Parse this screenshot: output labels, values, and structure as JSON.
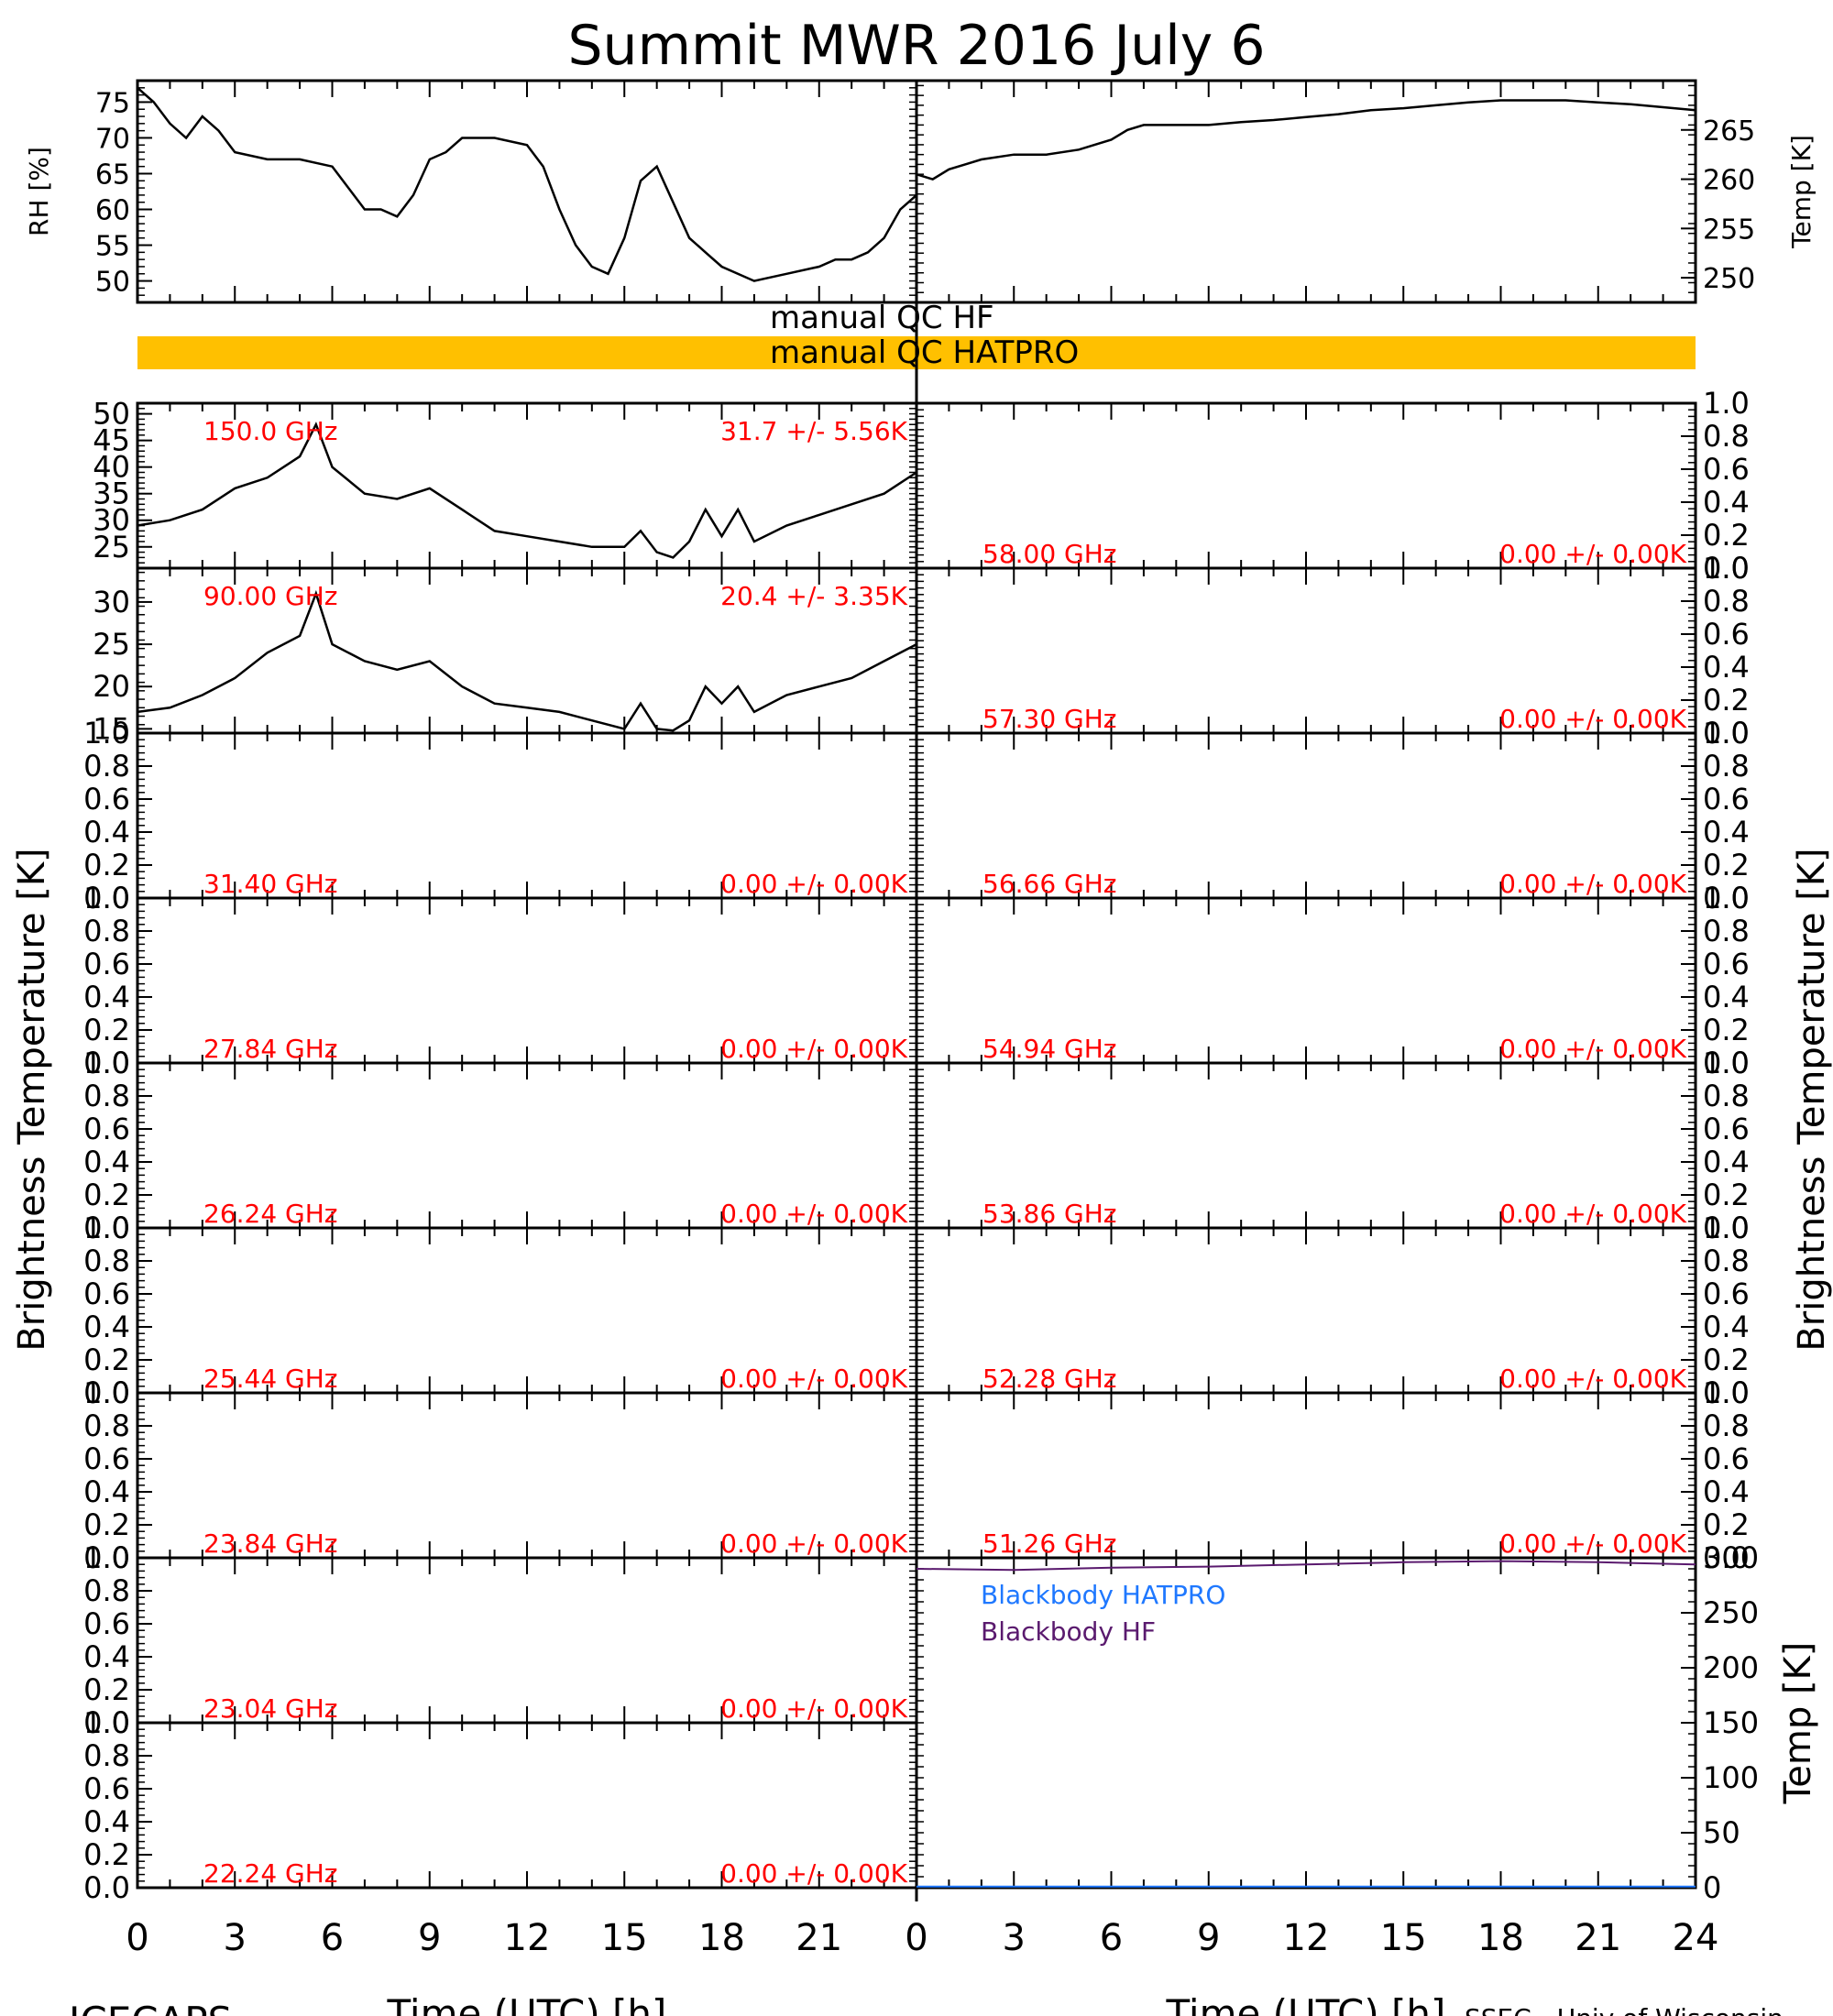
{
  "title": "Summit MWR 2016 July  6",
  "footer": {
    "left": "ICECAPS",
    "right": "SSEC - Univ of Wisconsin"
  },
  "xaxis": {
    "label": "Time (UTC) [h]",
    "range": [
      0,
      24
    ],
    "tick_labels": [
      "0",
      "3",
      "6",
      "9",
      "12",
      "15",
      "18",
      "21",
      "24"
    ]
  },
  "ylabels": {
    "bt_left": "Brightness Temperature [K]",
    "bt_right": "Brightness Temperature [K]"
  },
  "qc": {
    "hf_label": "manual QC HF",
    "hatpro_label": "manual QC HATPRO",
    "hatpro_color": "#ffc000"
  },
  "colors": {
    "trace": "#000000",
    "annotation": "#ff0000",
    "bb_hatpro": "#1f78ff",
    "bb_hf": "#5a1a6e"
  },
  "chart_data": [
    {
      "id": "rh",
      "type": "line",
      "ylabel": "RH [%]",
      "ylim": [
        47,
        78
      ],
      "yticks": [
        50,
        55,
        60,
        65,
        70,
        75
      ],
      "x": [
        0,
        0.5,
        1,
        1.5,
        2,
        2.5,
        3,
        4,
        5,
        6,
        6.5,
        7,
        7.5,
        8,
        8.5,
        9,
        9.5,
        10,
        11,
        12,
        12.5,
        13,
        13.5,
        14,
        14.5,
        15,
        15.5,
        16,
        16.5,
        17,
        17.5,
        18,
        19,
        20,
        21,
        21.5,
        22,
        22.5,
        23,
        23.5,
        24
      ],
      "values": [
        77,
        75,
        72,
        70,
        73,
        71,
        68,
        67,
        67,
        66,
        63,
        60,
        60,
        59,
        62,
        67,
        68,
        70,
        70,
        69,
        66,
        60,
        55,
        52,
        51,
        56,
        64,
        66,
        61,
        56,
        54,
        52,
        50,
        51,
        52,
        53,
        53,
        54,
        56,
        60,
        62
      ]
    },
    {
      "id": "temp",
      "type": "line",
      "ylabel": "Temp [K]",
      "ylim": [
        247.5,
        270
      ],
      "yticks": [
        250,
        255,
        260,
        265
      ],
      "x": [
        0,
        0.5,
        1,
        1.5,
        2,
        3,
        4,
        5,
        6,
        6.5,
        7,
        8,
        9,
        10,
        11,
        12,
        13,
        14,
        15,
        16,
        17,
        18,
        19,
        20,
        21,
        22,
        23,
        24
      ],
      "values": [
        260.5,
        260,
        261,
        261.5,
        262,
        262.5,
        262.5,
        263,
        264,
        265,
        265.5,
        265.5,
        265.5,
        265.8,
        266,
        266.3,
        266.6,
        267,
        267.2,
        267.5,
        267.8,
        268,
        268,
        268,
        267.8,
        267.6,
        267.3,
        267
      ]
    },
    {
      "id": "ch-150",
      "type": "line",
      "label": "150.0 GHz",
      "stat": "31.7 +/-  5.56K",
      "ylim": [
        21,
        52
      ],
      "yticks": [
        25,
        30,
        35,
        40,
        45,
        50
      ],
      "x": [
        0,
        1,
        2,
        3,
        4,
        5,
        5.5,
        6,
        7,
        8,
        9,
        10,
        11,
        12,
        13,
        14,
        15,
        15.5,
        16,
        16.5,
        17,
        17.5,
        18,
        18.5,
        19,
        20,
        21,
        22,
        23,
        24
      ],
      "values": [
        29,
        30,
        32,
        36,
        38,
        42,
        48,
        40,
        35,
        34,
        36,
        32,
        28,
        27,
        26,
        25,
        25,
        28,
        24,
        23,
        26,
        32,
        27,
        32,
        26,
        29,
        31,
        33,
        35,
        39
      ]
    },
    {
      "id": "ch-90",
      "type": "line",
      "label": "90.00 GHz",
      "stat": "20.4 +/-  3.35K",
      "ylim": [
        14.5,
        34
      ],
      "yticks": [
        15,
        20,
        25,
        30
      ],
      "x": [
        0,
        1,
        2,
        3,
        4,
        5,
        5.5,
        6,
        7,
        8,
        9,
        10,
        11,
        12,
        13,
        14,
        15,
        15.5,
        16,
        16.5,
        17,
        17.5,
        18,
        18.5,
        19,
        20,
        21,
        22,
        23,
        24
      ],
      "values": [
        17,
        17.5,
        19,
        21,
        24,
        26,
        31,
        25,
        23,
        22,
        23,
        20,
        18,
        17.5,
        17,
        16,
        15,
        18,
        15,
        14.8,
        16,
        20,
        18,
        20,
        17,
        19,
        20,
        21,
        23,
        25
      ]
    },
    {
      "id": "ch-3140",
      "type": "line",
      "label": "31.40 GHz",
      "stat": "0.00 +/-  0.00K",
      "ylim": [
        0,
        1
      ],
      "x": [],
      "values": []
    },
    {
      "id": "ch-2784",
      "type": "line",
      "label": "27.84 GHz",
      "stat": "0.00 +/-  0.00K",
      "ylim": [
        0,
        1
      ],
      "x": [],
      "values": []
    },
    {
      "id": "ch-2624",
      "type": "line",
      "label": "26.24 GHz",
      "stat": "0.00 +/-  0.00K",
      "ylim": [
        0,
        1
      ],
      "x": [],
      "values": []
    },
    {
      "id": "ch-2544",
      "type": "line",
      "label": "25.44 GHz",
      "stat": "0.00 +/-  0.00K",
      "ylim": [
        0,
        1
      ],
      "x": [],
      "values": []
    },
    {
      "id": "ch-2384",
      "type": "line",
      "label": "23.84 GHz",
      "stat": "0.00 +/-  0.00K",
      "ylim": [
        0,
        1
      ],
      "x": [],
      "values": []
    },
    {
      "id": "ch-2304",
      "type": "line",
      "label": "23.04 GHz",
      "stat": "0.00 +/-  0.00K",
      "ylim": [
        0,
        1
      ],
      "x": [],
      "values": []
    },
    {
      "id": "ch-2224",
      "type": "line",
      "label": "22.24 GHz",
      "stat": "0.00 +/-  0.00K",
      "ylim": [
        0,
        1
      ],
      "x": [],
      "values": []
    },
    {
      "id": "ch-5800",
      "type": "line",
      "label": "58.00 GHz",
      "stat": "0.00 +/-  0.00K",
      "ylim": [
        0,
        1
      ],
      "x": [],
      "values": []
    },
    {
      "id": "ch-5730",
      "type": "line",
      "label": "57.30 GHz",
      "stat": "0.00 +/-  0.00K",
      "ylim": [
        0,
        1
      ],
      "x": [],
      "values": []
    },
    {
      "id": "ch-5666",
      "type": "line",
      "label": "56.66 GHz",
      "stat": "0.00 +/-  0.00K",
      "ylim": [
        0,
        1
      ],
      "x": [],
      "values": []
    },
    {
      "id": "ch-5484",
      "type": "line",
      "label": "54.94 GHz",
      "stat": "0.00 +/-  0.00K",
      "ylim": [
        0,
        1
      ],
      "x": [],
      "values": []
    },
    {
      "id": "ch-5386",
      "type": "line",
      "label": "53.86 GHz",
      "stat": "0.00 +/-  0.00K",
      "ylim": [
        0,
        1
      ],
      "x": [],
      "values": []
    },
    {
      "id": "ch-5228",
      "type": "line",
      "label": "52.28 GHz",
      "stat": "0.00 +/-  0.00K",
      "ylim": [
        0,
        1
      ],
      "x": [],
      "values": []
    },
    {
      "id": "ch-5126",
      "type": "line",
      "label": "51.26 GHz",
      "stat": "0.00 +/-  0.00K",
      "ylim": [
        0,
        1
      ],
      "x": [],
      "values": []
    },
    {
      "id": "blackbody",
      "type": "line",
      "ylabel": "Temp [K]",
      "ylim": [
        0,
        300
      ],
      "yticks": [
        0,
        50,
        100,
        150,
        200,
        250,
        300
      ],
      "series": [
        {
          "name": "Blackbody HATPRO",
          "color": "#1f78ff",
          "x": [
            0,
            24
          ],
          "values": [
            1,
            1
          ]
        },
        {
          "name": "Blackbody HF",
          "color": "#5a1a6e",
          "x": [
            0,
            3,
            6,
            9,
            12,
            15,
            18,
            21,
            24
          ],
          "values": [
            290,
            289,
            291,
            292,
            294,
            296,
            297,
            296,
            294
          ]
        }
      ]
    }
  ]
}
